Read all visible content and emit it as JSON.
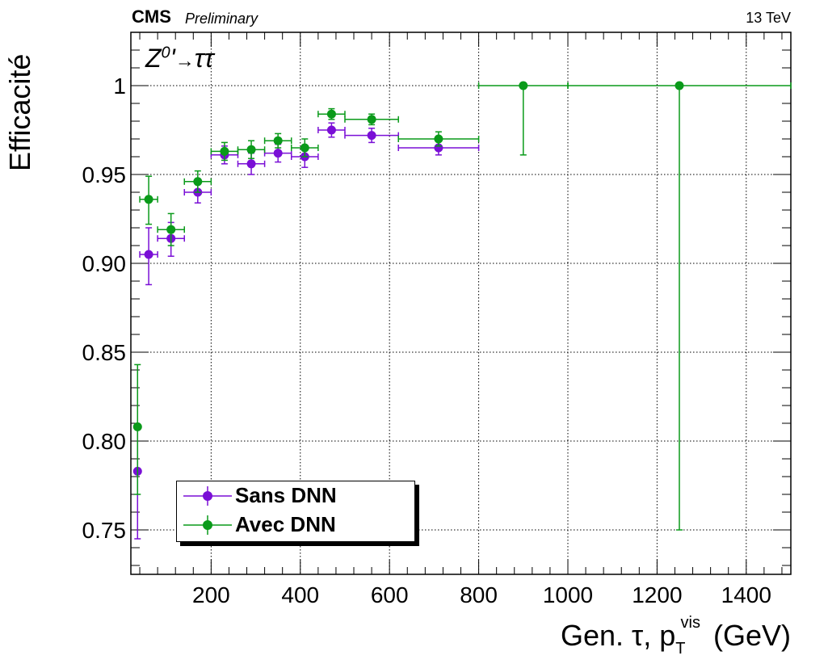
{
  "header": {
    "experiment": "CMS",
    "status": "Preliminary",
    "energy": "13 TeV"
  },
  "process_label": {
    "boson": "Z",
    "superscript": "0",
    "prime": "'",
    "arrow": "→",
    "products": "ττ"
  },
  "chart_data": {
    "type": "scatter",
    "title": "",
    "ylabel": "Efficacité",
    "xlabel": {
      "prefix": "Gen. τ, p",
      "subscript": "T",
      "superscript": "vis",
      "unit": "(GeV)"
    },
    "xlim": [
      20,
      1500
    ],
    "ylim": [
      0.725,
      1.03
    ],
    "x_ticks": [
      200,
      400,
      600,
      800,
      1000,
      1200,
      1400
    ],
    "x_tick_labels": [
      "200",
      "400",
      "600",
      "800",
      "1000",
      "1200",
      "1400"
    ],
    "y_ticks": [
      0.75,
      0.8,
      0.85,
      0.9,
      0.95,
      1.0
    ],
    "y_tick_labels": [
      "0.75",
      "0.80",
      "0.85",
      "0.90",
      "0.95",
      "1"
    ],
    "grid": true,
    "legend_position": "bottom-left",
    "series": [
      {
        "name": "Sans DNN",
        "color": "#7a0fd6",
        "points": [
          {
            "x": 35,
            "xerr": 5,
            "y": 0.783,
            "ylo": 0.745,
            "yhi": 0.808
          },
          {
            "x": 60,
            "xerr": 20,
            "y": 0.905,
            "ylo": 0.888,
            "yhi": 0.92
          },
          {
            "x": 110,
            "xerr": 30,
            "y": 0.914,
            "ylo": 0.904,
            "yhi": 0.923
          },
          {
            "x": 170,
            "xerr": 30,
            "y": 0.94,
            "ylo": 0.934,
            "yhi": 0.946
          },
          {
            "x": 230,
            "xerr": 30,
            "y": 0.961,
            "ylo": 0.956,
            "yhi": 0.966
          },
          {
            "x": 290,
            "xerr": 30,
            "y": 0.956,
            "ylo": 0.95,
            "yhi": 0.962
          },
          {
            "x": 350,
            "xerr": 30,
            "y": 0.962,
            "ylo": 0.957,
            "yhi": 0.967
          },
          {
            "x": 410,
            "xerr": 30,
            "y": 0.96,
            "ylo": 0.954,
            "yhi": 0.965
          },
          {
            "x": 470,
            "xerr": 30,
            "y": 0.975,
            "ylo": 0.971,
            "yhi": 0.979
          },
          {
            "x": 560,
            "xerr": 60,
            "y": 0.972,
            "ylo": 0.968,
            "yhi": 0.976
          },
          {
            "x": 710,
            "xerr": 90,
            "y": 0.965,
            "ylo": 0.961,
            "yhi": 0.969
          }
        ]
      },
      {
        "name": "Avec DNN",
        "color": "#0a9a1a",
        "points": [
          {
            "x": 35,
            "xerr": 5,
            "y": 0.808,
            "ylo": 0.77,
            "yhi": 0.843
          },
          {
            "x": 60,
            "xerr": 20,
            "y": 0.936,
            "ylo": 0.922,
            "yhi": 0.949
          },
          {
            "x": 110,
            "xerr": 30,
            "y": 0.919,
            "ylo": 0.91,
            "yhi": 0.928
          },
          {
            "x": 170,
            "xerr": 30,
            "y": 0.946,
            "ylo": 0.94,
            "yhi": 0.952
          },
          {
            "x": 230,
            "xerr": 30,
            "y": 0.963,
            "ylo": 0.958,
            "yhi": 0.968
          },
          {
            "x": 290,
            "xerr": 30,
            "y": 0.964,
            "ylo": 0.959,
            "yhi": 0.969
          },
          {
            "x": 350,
            "xerr": 30,
            "y": 0.969,
            "ylo": 0.965,
            "yhi": 0.973
          },
          {
            "x": 410,
            "xerr": 30,
            "y": 0.965,
            "ylo": 0.96,
            "yhi": 0.97
          },
          {
            "x": 470,
            "xerr": 30,
            "y": 0.984,
            "ylo": 0.981,
            "yhi": 0.987
          },
          {
            "x": 560,
            "xerr": 60,
            "y": 0.981,
            "ylo": 0.978,
            "yhi": 0.984
          },
          {
            "x": 710,
            "xerr": 90,
            "y": 0.97,
            "ylo": 0.966,
            "yhi": 0.974
          },
          {
            "x": 900,
            "xerr": 100,
            "y": 1.0,
            "ylo": 0.961,
            "yhi": 1.0
          },
          {
            "x": 1250,
            "xerr": 250,
            "y": 1.0,
            "ylo": 0.75,
            "yhi": 1.0
          }
        ]
      }
    ]
  }
}
